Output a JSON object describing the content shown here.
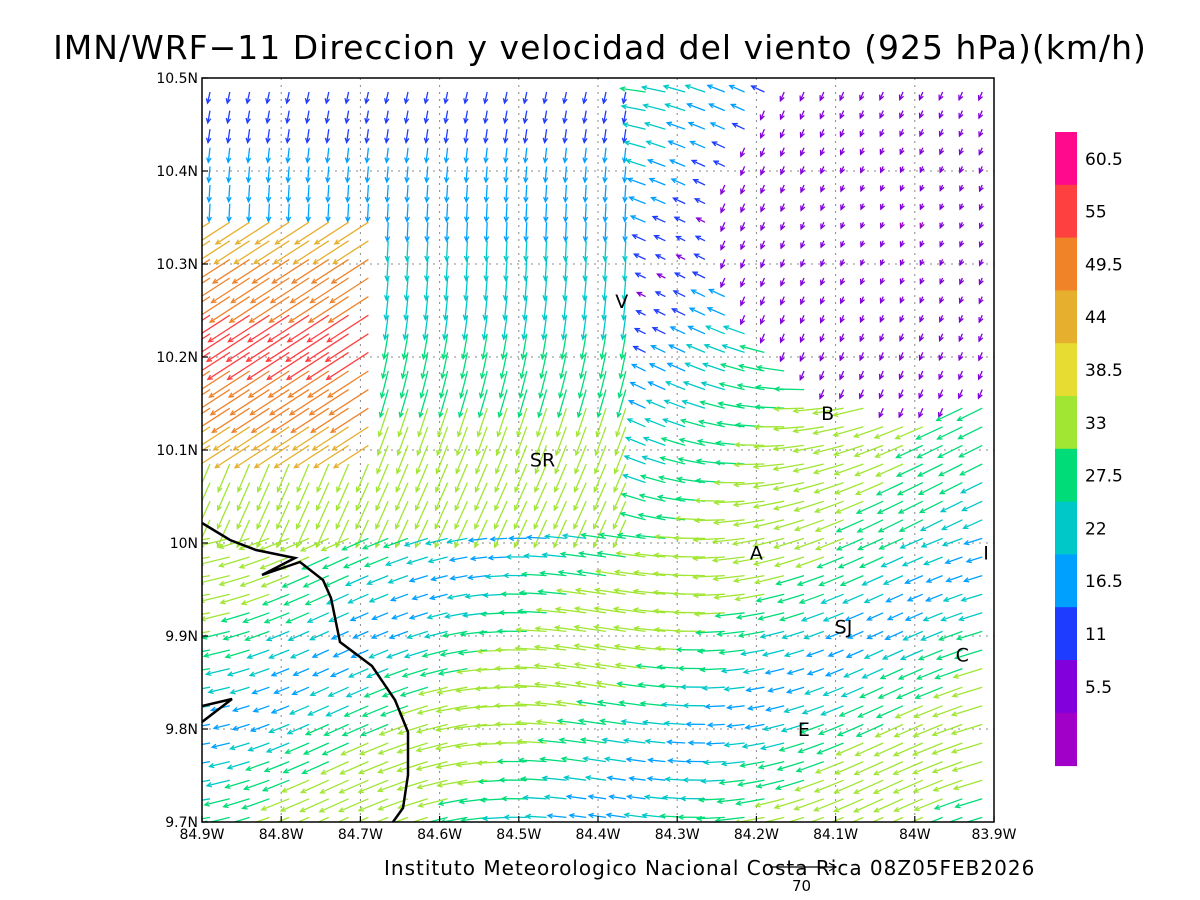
{
  "title": "IMN/WRF−11 Direccion y velocidad del viento (925 hPa)(km/h)",
  "footer": "Instituto Meteorologico Nacional Costa Rica 08Z05FEB2026",
  "reference_vector": {
    "label": "70",
    "speed": 70
  },
  "axes": {
    "lon_ticks": [
      "84.9W",
      "84.8W",
      "84.7W",
      "84.6W",
      "84.5W",
      "84.4W",
      "84.3W",
      "84.2W",
      "84.1W",
      "84W",
      "83.9W"
    ],
    "lat_ticks": [
      "10.5N",
      "10.4N",
      "10.3N",
      "10.2N",
      "10.1N",
      "10N",
      "9.9N",
      "9.8N",
      "9.7N"
    ],
    "lon_range": [
      -84.9,
      -83.9
    ],
    "lat_range": [
      9.7,
      10.5
    ],
    "grid": true
  },
  "colorbar": {
    "labels": [
      "60.5",
      "55",
      "49.5",
      "44",
      "38.5",
      "33",
      "27.5",
      "22",
      "16.5",
      "11",
      "5.5"
    ],
    "colors": [
      "#ff0a8c",
      "#ff4040",
      "#f08228",
      "#e6af2d",
      "#e6dc32",
      "#a0e632",
      "#00dc78",
      "#00c8c8",
      "#00a0ff",
      "#1e3cff",
      "#8200dc",
      "#a000c8"
    ]
  },
  "locations": [
    {
      "code": "V",
      "lon": -84.37,
      "lat": 10.26
    },
    {
      "code": "B",
      "lon": -84.11,
      "lat": 10.14
    },
    {
      "code": "SR",
      "lon": -84.47,
      "lat": 10.09
    },
    {
      "code": "A",
      "lon": -84.2,
      "lat": 9.99
    },
    {
      "code": "I",
      "lon": -83.91,
      "lat": 9.99
    },
    {
      "code": "SJ",
      "lon": -84.09,
      "lat": 9.91
    },
    {
      "code": "C",
      "lon": -83.94,
      "lat": 9.88
    },
    {
      "code": "E",
      "lon": -84.14,
      "lat": 9.8
    }
  ]
}
